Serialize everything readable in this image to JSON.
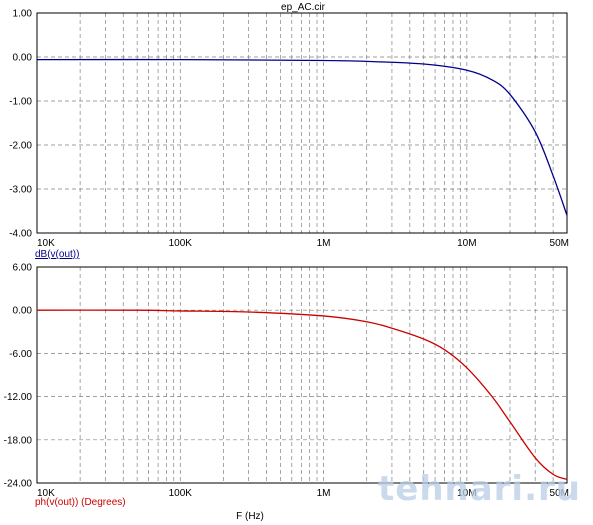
{
  "window_title": "ep_AC.cir",
  "watermark": "tehnari.ru",
  "colors": {
    "mag_trace": "#00008b",
    "phase_trace": "#cc0000",
    "grid": "#808080",
    "frame": "#000000"
  },
  "chart_data": [
    {
      "type": "line",
      "title": "ep_AC.cir",
      "xscale": "log",
      "xlim": [
        10000,
        50000000
      ],
      "ylim": [
        -4.0,
        1.0
      ],
      "xticks": [
        10000,
        100000,
        1000000,
        10000000,
        50000000
      ],
      "xtick_labels": [
        "10K",
        "100K",
        "1M",
        "10M",
        "50M"
      ],
      "yticks": [
        1.0,
        0.0,
        -1.0,
        -2.0,
        -3.0,
        -4.0
      ],
      "ytick_labels": [
        "1.00",
        "0.00",
        "-1.00",
        "-2.00",
        "-3.00",
        "-4.00"
      ],
      "ylabel": "dB(v(out))",
      "grid": true,
      "series": [
        {
          "name": "dB(v(out))",
          "x": [
            10000,
            100000,
            1000000,
            2000000,
            5000000,
            10000000,
            15000000,
            20000000,
            30000000,
            40000000,
            50000000
          ],
          "y": [
            -0.06,
            -0.06,
            -0.08,
            -0.1,
            -0.16,
            -0.3,
            -0.52,
            -0.85,
            -1.7,
            -2.7,
            -3.6
          ]
        }
      ]
    },
    {
      "type": "line",
      "xscale": "log",
      "xlim": [
        10000,
        50000000
      ],
      "ylim": [
        -24.0,
        6.0
      ],
      "xticks": [
        10000,
        100000,
        1000000,
        10000000,
        50000000
      ],
      "xtick_labels": [
        "10K",
        "100K",
        "1M",
        "10M",
        "50M"
      ],
      "yticks": [
        6.0,
        0.0,
        -6.0,
        -12.0,
        -18.0,
        -24.0
      ],
      "ytick_labels": [
        "6.00",
        "0.00",
        "-6.00",
        "-12.00",
        "-18.00",
        "-24.00"
      ],
      "ylabel": "ph(v(out)) (Degrees)",
      "xlabel": "F (Hz)",
      "grid": true,
      "series": [
        {
          "name": "ph(v(out)) (Degrees)",
          "x": [
            10000,
            50000,
            100000,
            300000,
            1000000,
            2000000,
            3000000,
            5000000,
            7000000,
            10000000,
            15000000,
            20000000,
            30000000,
            40000000,
            50000000
          ],
          "y": [
            0.0,
            0.0,
            -0.1,
            -0.25,
            -0.8,
            -1.6,
            -2.5,
            -4.0,
            -5.5,
            -8.0,
            -12.0,
            -15.5,
            -20.5,
            -22.8,
            -23.5
          ]
        }
      ]
    }
  ]
}
